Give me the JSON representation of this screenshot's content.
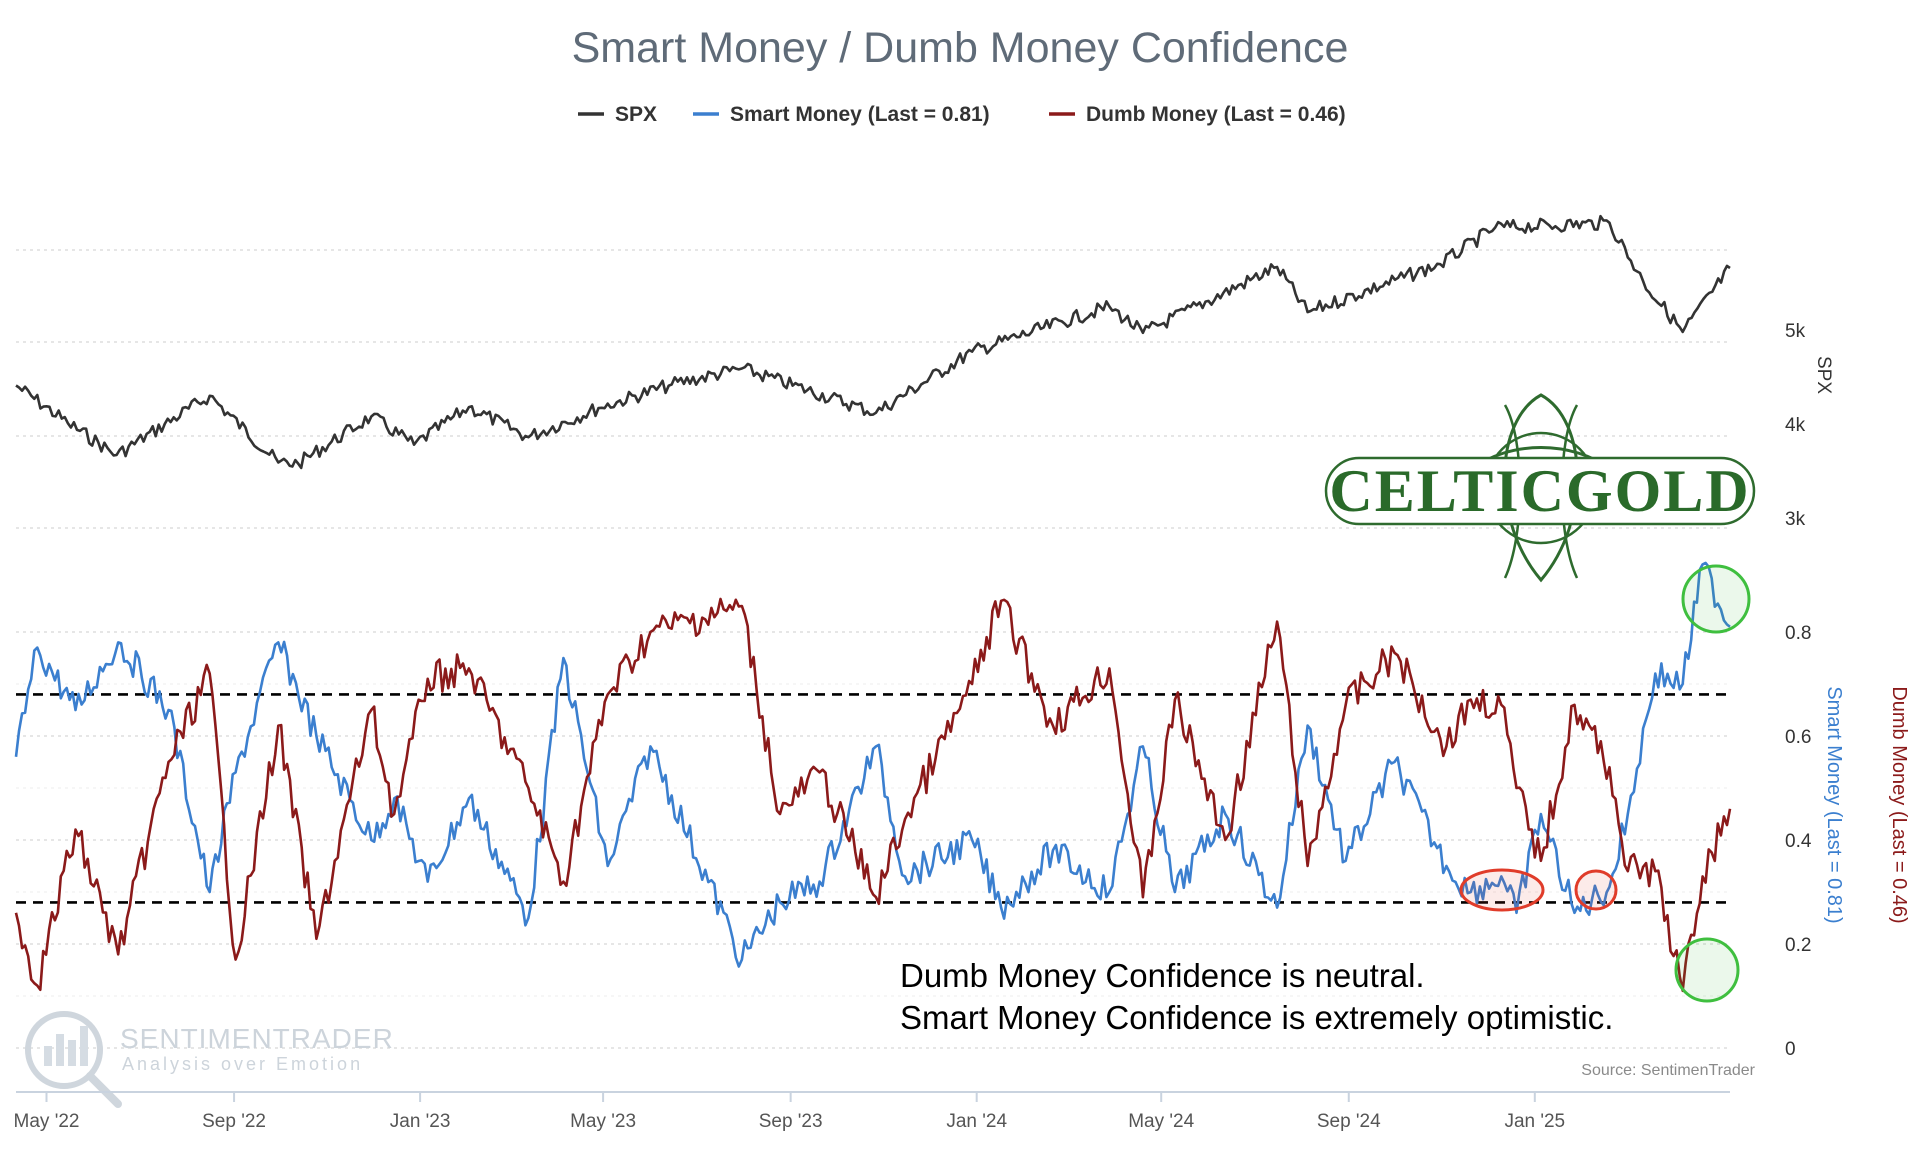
{
  "chart_data": {
    "type": "line",
    "title": "Smart Money / Dumb Money Confidence",
    "legend": {
      "position": "top-center",
      "entries": [
        {
          "name": "SPX",
          "color": "#333333"
        },
        {
          "name": "Smart Money (Last = 0.81)",
          "color": "#3b7fcf"
        },
        {
          "name": "Dumb Money (Last = 0.46)",
          "color": "#8b1a1a"
        }
      ]
    },
    "x_ticks": [
      "May '22",
      "Sep '22",
      "Jan '23",
      "May '23",
      "Sep '23",
      "Jan '24",
      "May '24",
      "Sep '24",
      "Jan '25"
    ],
    "x_range": [
      "2022-04-11",
      "2025-05-09"
    ],
    "spx_axis": {
      "label": "SPX",
      "ticks": [
        "5k",
        "4k",
        "3k"
      ],
      "tick_values": [
        5000,
        4000,
        3000
      ]
    },
    "confidence_axis": {
      "ticks": [
        "0.8",
        "0.6",
        "0.4",
        "0.2",
        "0"
      ],
      "tick_values": [
        0.8,
        0.6,
        0.4,
        0.2,
        0
      ],
      "ylim": [
        0,
        1
      ]
    },
    "smart_axis_label": "Smart Money (Last = 0.81)",
    "dumb_axis_label": "Dumb Money (Last = 0.46)",
    "reference_lines": [
      0.68,
      0.28
    ],
    "grid": true,
    "spx": {
      "name": "SPX",
      "x": [
        "2022-04-11",
        "2022-05-15",
        "2022-06-16",
        "2022-08-16",
        "2022-09-30",
        "2022-10-13",
        "2022-11-30",
        "2022-12-28",
        "2023-02-02",
        "2023-03-13",
        "2023-04-28",
        "2023-06-15",
        "2023-07-31",
        "2023-10-27",
        "2023-12-29",
        "2024-03-28",
        "2024-04-19",
        "2024-07-16",
        "2024-08-05",
        "2024-10-31",
        "2024-12-06",
        "2025-02-19",
        "2025-03-13",
        "2025-04-08",
        "2025-05-09"
      ],
      "y": [
        4410,
        4010,
        3670,
        4300,
        3590,
        3580,
        4080,
        3780,
        4180,
        3860,
        4170,
        4420,
        4590,
        4120,
        4770,
        5250,
        4970,
        5670,
        5190,
        5700,
        6090,
        6140,
        5520,
        4980,
        5660
      ]
    },
    "smart_money": {
      "name": "Smart Money",
      "x": [
        "2022-04-11",
        "2022-04-25",
        "2022-05-20",
        "2022-06-17",
        "2022-07-20",
        "2022-08-16",
        "2022-09-02",
        "2022-09-30",
        "2022-10-25",
        "2022-11-30",
        "2022-12-15",
        "2023-01-06",
        "2023-02-02",
        "2023-03-13",
        "2023-04-05",
        "2023-05-04",
        "2023-06-01",
        "2023-07-31",
        "2023-08-25",
        "2023-09-20",
        "2023-10-27",
        "2023-11-15",
        "2023-12-29",
        "2024-01-17",
        "2024-02-20",
        "2024-03-28",
        "2024-04-19",
        "2024-05-10",
        "2024-06-12",
        "2024-07-16",
        "2024-08-05",
        "2024-08-30",
        "2024-10-01",
        "2024-11-04",
        "2024-11-20",
        "2024-12-10",
        "2024-12-20",
        "2025-01-05",
        "2025-01-27",
        "2025-02-19",
        "2025-03-03",
        "2025-03-21",
        "2025-04-08",
        "2025-04-21",
        "2025-05-09"
      ],
      "y": [
        0.56,
        0.77,
        0.65,
        0.78,
        0.65,
        0.3,
        0.53,
        0.78,
        0.6,
        0.4,
        0.48,
        0.32,
        0.48,
        0.25,
        0.75,
        0.35,
        0.58,
        0.17,
        0.28,
        0.32,
        0.58,
        0.33,
        0.4,
        0.27,
        0.38,
        0.3,
        0.58,
        0.3,
        0.45,
        0.27,
        0.62,
        0.36,
        0.55,
        0.35,
        0.3,
        0.33,
        0.26,
        0.45,
        0.26,
        0.31,
        0.45,
        0.72,
        0.7,
        0.93,
        0.81
      ]
    },
    "dumb_money": {
      "name": "Dumb Money",
      "x": [
        "2022-04-11",
        "2022-04-25",
        "2022-05-20",
        "2022-06-17",
        "2022-07-20",
        "2022-08-16",
        "2022-09-02",
        "2022-09-30",
        "2022-10-25",
        "2022-11-30",
        "2022-12-15",
        "2023-01-06",
        "2023-02-02",
        "2023-03-13",
        "2023-04-05",
        "2023-05-04",
        "2023-06-01",
        "2023-07-31",
        "2023-08-25",
        "2023-09-20",
        "2023-10-27",
        "2023-11-15",
        "2023-12-29",
        "2024-01-17",
        "2024-02-20",
        "2024-03-28",
        "2024-04-19",
        "2024-05-10",
        "2024-06-12",
        "2024-07-16",
        "2024-08-05",
        "2024-08-30",
        "2024-10-01",
        "2024-11-04",
        "2024-11-20",
        "2024-12-10",
        "2024-12-20",
        "2025-01-05",
        "2025-01-27",
        "2025-02-19",
        "2025-03-03",
        "2025-03-21",
        "2025-04-08",
        "2025-04-21",
        "2025-05-09"
      ],
      "y": [
        0.26,
        0.12,
        0.42,
        0.18,
        0.55,
        0.72,
        0.17,
        0.62,
        0.21,
        0.65,
        0.45,
        0.71,
        0.73,
        0.5,
        0.32,
        0.68,
        0.8,
        0.85,
        0.45,
        0.53,
        0.29,
        0.44,
        0.7,
        0.86,
        0.62,
        0.73,
        0.29,
        0.67,
        0.4,
        0.82,
        0.35,
        0.66,
        0.76,
        0.58,
        0.67,
        0.66,
        0.5,
        0.36,
        0.66,
        0.54,
        0.34,
        0.34,
        0.11,
        0.33,
        0.46
      ]
    },
    "annotations": [
      "Dumb Money Confidence is neutral.",
      "Smart Money Confidence is extremely optimistic."
    ],
    "source": "Source: SentimenTrader",
    "watermark": {
      "brand": "SENTIMENTRADER",
      "tagline": "Analysis over Emotion"
    },
    "logo": "CELTICGOLD",
    "highlight_colors": {
      "green": "#3fbf3f",
      "red": "#e03c2a"
    }
  }
}
